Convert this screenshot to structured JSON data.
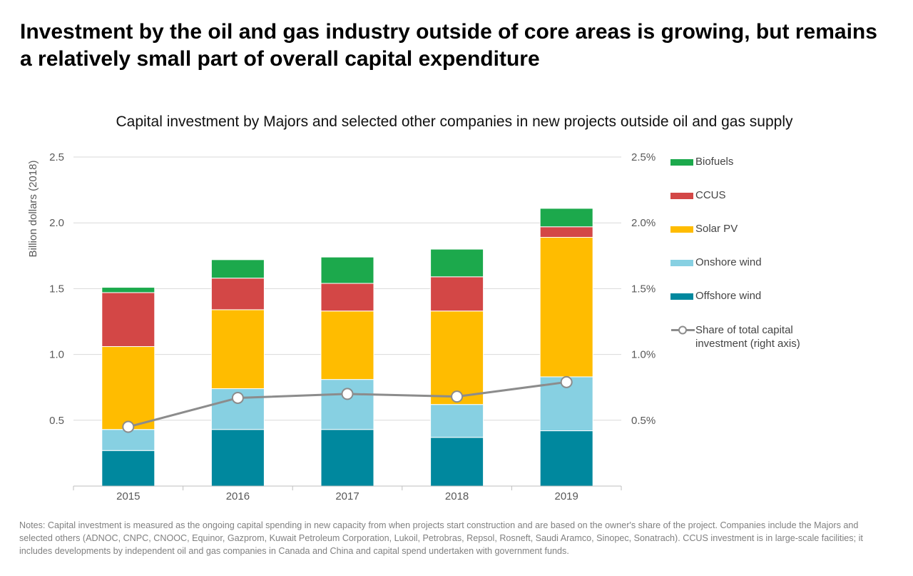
{
  "headline": "Investment by the oil and gas industry outside of core areas is growing, but remains a relatively small part of overall capital expenditure",
  "chart_data": {
    "type": "bar",
    "stacked": true,
    "title": "Capital investment by Majors and selected other companies in new projects outside oil and gas supply",
    "ylabel": "Billion dollars (2018)",
    "ylim": [
      0,
      2.5
    ],
    "yticks": [
      "0.5",
      "1.0",
      "1.5",
      "2.0",
      "2.5"
    ],
    "y2lim": [
      0,
      2.5
    ],
    "y2ticks": [
      "0.5%",
      "1.0%",
      "1.5%",
      "2.0%",
      "2.5%"
    ],
    "categories": [
      "2015",
      "2016",
      "2017",
      "2018",
      "2019"
    ],
    "series": [
      {
        "name": "Offshore wind",
        "color": "#00889e",
        "values": [
          0.27,
          0.43,
          0.43,
          0.37,
          0.42
        ]
      },
      {
        "name": "Onshore wind",
        "color": "#87d0e2",
        "values": [
          0.16,
          0.31,
          0.38,
          0.25,
          0.41
        ]
      },
      {
        "name": "Solar PV",
        "color": "#ffbc00",
        "values": [
          0.63,
          0.6,
          0.52,
          0.71,
          1.06
        ]
      },
      {
        "name": "CCUS",
        "color": "#d34746",
        "values": [
          0.41,
          0.24,
          0.21,
          0.26,
          0.08
        ]
      },
      {
        "name": "Biofuels",
        "color": "#1ca94c",
        "values": [
          0.04,
          0.14,
          0.2,
          0.21,
          0.14
        ]
      }
    ],
    "line": {
      "name": "Share of total capital investment (right axis)",
      "color": "#8c8c8c",
      "values": [
        0.45,
        0.67,
        0.7,
        0.68,
        0.79
      ]
    },
    "legend_order": [
      "Biofuels",
      "CCUS",
      "Solar PV",
      "Onshore wind",
      "Offshore wind"
    ]
  },
  "notes": "Notes: Capital investment is measured as the ongoing capital spending in new capacity from when projects start construction and are based on the owner's share of the project. Companies include the Majors and selected others (ADNOC, CNPC, CNOOC, Equinor, Gazprom, Kuwait Petroleum Corporation, Lukoil, Petrobras, Repsol, Rosneft, Saudi Aramco, Sinopec, Sonatrach). CCUS investment is in large-scale facilities; it includes developments by independent oil and gas companies in Canada and China and capital spend undertaken with government funds."
}
